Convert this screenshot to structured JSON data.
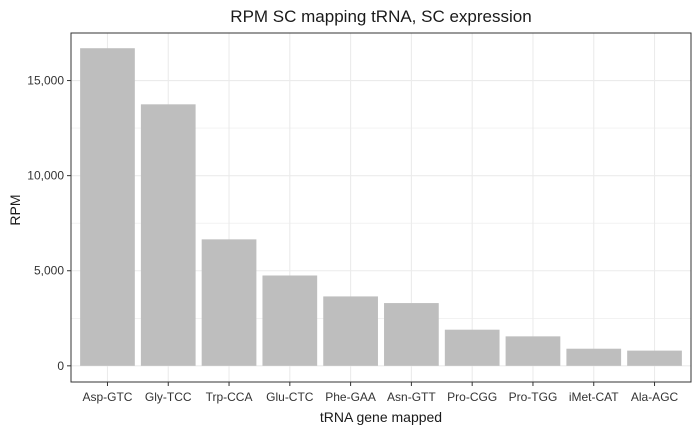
{
  "chart_data": {
    "type": "bar",
    "title": "RPM SC mapping tRNA, SC expression",
    "xlabel": "tRNA gene mapped",
    "ylabel": "RPM",
    "categories": [
      "Asp-GTC",
      "Gly-TCC",
      "Trp-CCA",
      "Glu-CTC",
      "Phe-GAA",
      "Asn-GTT",
      "Pro-CGG",
      "Pro-TGG",
      "iMet-CAT",
      "Ala-AGC"
    ],
    "values": [
      16700,
      13750,
      6650,
      4750,
      3650,
      3300,
      1900,
      1550,
      900,
      800
    ],
    "ylim": [
      -850,
      17500
    ],
    "yticks": [
      0,
      5000,
      10000,
      15000
    ],
    "ytick_labels": [
      "0",
      "5,000",
      "10,000",
      "15,000"
    ],
    "grid": true,
    "legend": "none",
    "colors": {
      "bar": "#bebebe",
      "grid": "#ebebeb",
      "panel_border": "#333333"
    }
  }
}
